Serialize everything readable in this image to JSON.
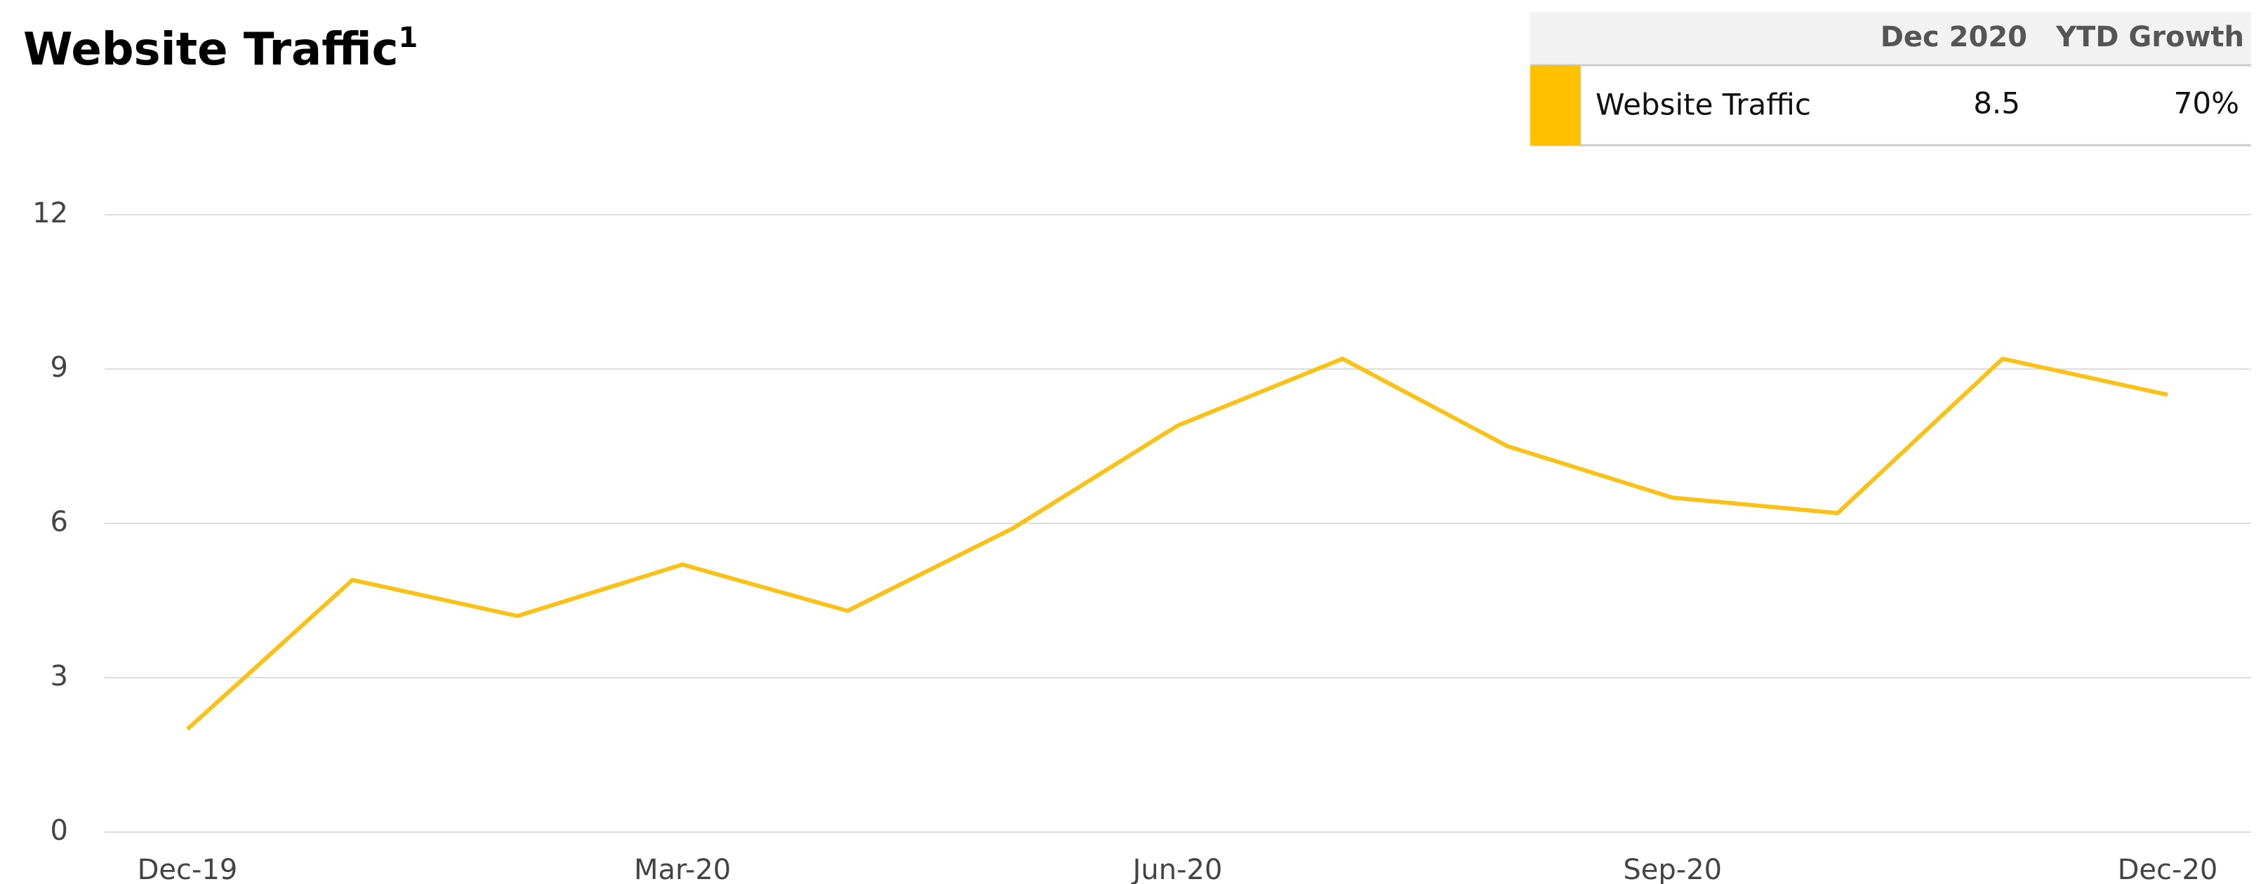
{
  "chart_data": {
    "type": "line",
    "title": "Website Traffic",
    "title_superscript": "1",
    "categories": [
      "Dec-19",
      null,
      null,
      "Mar-20",
      null,
      null,
      "Jun-20",
      null,
      null,
      "Sep-20",
      null,
      null,
      "Dec-20"
    ],
    "series": [
      {
        "name": "Website Traffic",
        "color": "#f8c21a",
        "values": [
          2.0,
          4.9,
          4.2,
          5.2,
          4.3,
          5.9,
          7.9,
          9.2,
          7.5,
          6.5,
          6.2,
          9.2,
          8.5
        ]
      }
    ],
    "ylim": [
      0,
      12
    ],
    "yticks": [
      0,
      3,
      6,
      9,
      12
    ],
    "grid": true,
    "legend_table": {
      "headers": [
        "Dec 2020",
        "YTD Growth"
      ],
      "swatch_color": "#ffc000",
      "growth": {
        "value": 70,
        "label": "70%"
      },
      "growth_color": "#1a8a2a"
    }
  }
}
